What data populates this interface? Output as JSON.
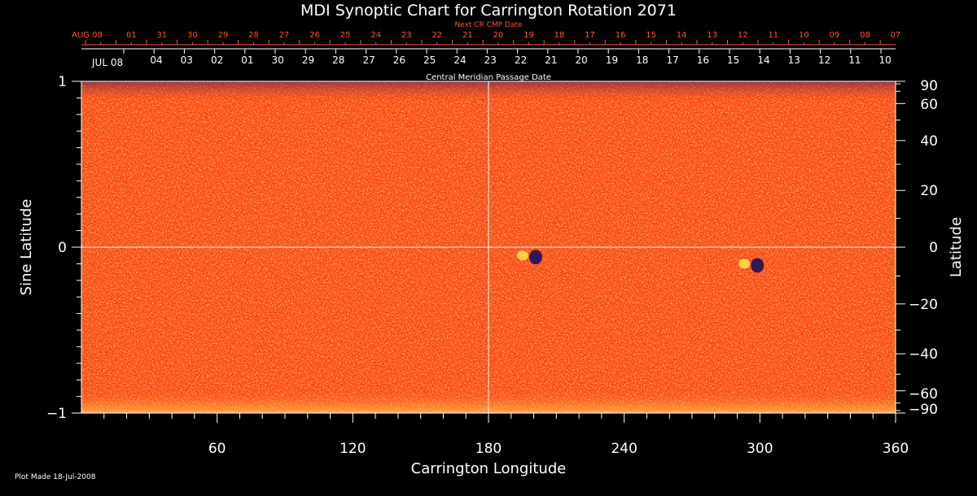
{
  "chart_data": {
    "type": "heatmap",
    "title": "MDI Synoptic Chart for Carrington Rotation 2071",
    "xlabel": "Carrington Longitude",
    "ylabel_left": "Sine Latitude",
    "ylabel_right": "Latitude",
    "xlim": [
      0,
      360
    ],
    "ylim": [
      -1,
      1
    ],
    "x_ticks": [
      60,
      120,
      180,
      240,
      300,
      360
    ],
    "left_y_ticks": [
      {
        "value": 1,
        "label": "1"
      },
      {
        "value": 0,
        "label": "0"
      },
      {
        "value": -1,
        "label": "−1"
      }
    ],
    "right_y_ticks": [
      {
        "deg": 90,
        "label": "90"
      },
      {
        "deg": 60,
        "label": "60"
      },
      {
        "deg": 40,
        "label": "40"
      },
      {
        "deg": 20,
        "label": "20"
      },
      {
        "deg": 0,
        "label": "0"
      },
      {
        "deg": -20,
        "label": "−20"
      },
      {
        "deg": -40,
        "label": "−40"
      },
      {
        "deg": -60,
        "label": "−60"
      },
      {
        "deg": -90,
        "label": "−90"
      }
    ],
    "next_cr_label": "Next CR CMP Date",
    "next_cr_dates": [
      "AUG 08",
      "01",
      "31",
      "30",
      "29",
      "28",
      "27",
      "26",
      "25",
      "24",
      "23",
      "22",
      "21",
      "20",
      "19",
      "18",
      "17",
      "16",
      "15",
      "14",
      "13",
      "12",
      "11",
      "10",
      "09",
      "08",
      "07"
    ],
    "cmp_label": "Central Meridian Passage Date",
    "cmp_dates": [
      "JUL 08",
      "04",
      "03",
      "02",
      "01",
      "30",
      "29",
      "28",
      "27",
      "26",
      "25",
      "24",
      "23",
      "22",
      "21",
      "20",
      "19",
      "18",
      "17",
      "16",
      "15",
      "14",
      "13",
      "12",
      "11",
      "10"
    ],
    "reference_lines": {
      "longitude": 180,
      "sine_latitude": 0
    },
    "active_regions": [
      {
        "longitude": 198,
        "sine_latitude": -0.05
      },
      {
        "longitude": 296,
        "sine_latitude": -0.1
      }
    ],
    "colors": {
      "background": "#ff4c12",
      "positive": "#ffd84a",
      "negative": "#1a1060",
      "axes": "#ffffff",
      "date_text": "#ff5a2a"
    }
  },
  "footer": {
    "plot_made": "Plot Made 18-Jul-2008"
  }
}
